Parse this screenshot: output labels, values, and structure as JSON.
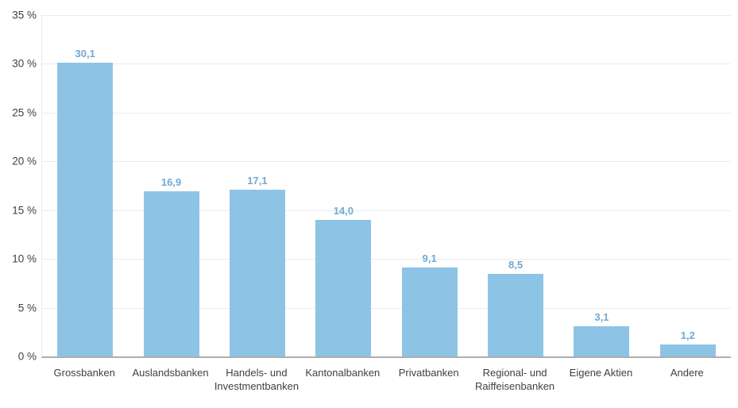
{
  "chart_data": {
    "type": "bar",
    "title": "",
    "xlabel": "",
    "ylabel": "",
    "categories": [
      "Grossbanken",
      "Auslandsbanken",
      "Handels- und Investmentbanken",
      "Kantonalbanken",
      "Privatbanken",
      "Regional- und Raiffeisenbanken",
      "Eigene Aktien",
      "Andere"
    ],
    "values": [
      30.1,
      16.9,
      17.1,
      14.0,
      9.1,
      8.5,
      3.1,
      1.2
    ],
    "value_labels": [
      "30,1",
      "16,9",
      "17,1",
      "14,0",
      "9,1",
      "8,5",
      "3,1",
      "1,2"
    ],
    "ylim": [
      0,
      35
    ],
    "yticks": [
      0,
      5,
      10,
      15,
      20,
      25,
      30,
      35
    ],
    "ytick_labels": [
      "0 %",
      "5 %",
      "10 %",
      "15 %",
      "20 %",
      "25 %",
      "30 %",
      "35 %"
    ],
    "grid": true,
    "legend": "none"
  },
  "colors": {
    "bar_fill": "#8dc4e5",
    "value_label": "#6fa9d4",
    "gridline": "#ebebeb",
    "axis_line": "#aeaeae",
    "axis_text": "#3f3f3f",
    "background": "#ffffff"
  }
}
